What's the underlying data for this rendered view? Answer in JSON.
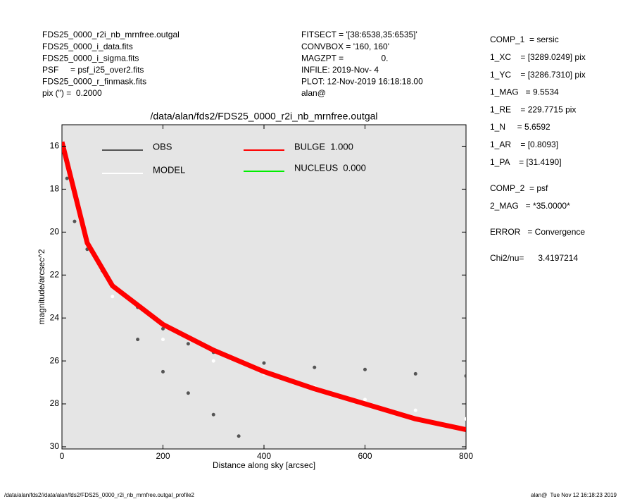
{
  "header": {
    "left": [
      "FDS25_0000_r2i_nb_mrnfree.outgal",
      "FDS25_0000_i_data.fits",
      "FDS25_0000_i_sigma.fits",
      "PSF     = psf_i25_over2.fits",
      "FDS25_0000_r_finmask.fits",
      "pix (\") =  0.2000"
    ],
    "middle": [
      "FITSECT = '[38:6538,35:6535]'",
      "CONVBOX = '160, 160'",
      "MAGZPT =                0.",
      "INFILE: 2019-Nov- 4",
      "PLOT: 12-Nov-2019 16:18:18.00",
      "alan@"
    ],
    "right": [
      [
        "COMP_1  = sersic",
        "1_XC    = [3289.0249] pix",
        "1_YC    = [3286.7310] pix",
        "1_MAG   = 9.5534",
        "1_RE    = 229.7715 pix",
        "1_N     = 5.6592",
        "1_AR    = [0.8093]",
        "1_PA    = [31.4190]"
      ],
      [
        "COMP_2  = psf",
        "2_MAG   = *35.0000*"
      ],
      [
        "ERROR   = Convergence"
      ],
      [
        "Chi2/nu=      3.4197214"
      ]
    ]
  },
  "chart_data": {
    "type": "scatter",
    "title": "/data/alan/fds2/FDS25_0000_r2i_nb_mrnfree.outgal",
    "x_label": "Distance along sky [arcsec]",
    "y_label": "magnitude/arcsec^2",
    "xlim": [
      0,
      800
    ],
    "ylim": [
      30.1,
      15.0
    ],
    "xticks": [
      0,
      200,
      400,
      600,
      800
    ],
    "yticks": [
      16,
      18,
      20,
      22,
      24,
      26,
      28,
      30
    ],
    "background": "#e5e5e5",
    "series": [
      {
        "name": "OBS",
        "color": "#555555",
        "style": "points",
        "x": [
          0,
          10,
          25,
          50,
          80,
          100,
          150,
          200,
          250,
          300,
          400,
          500,
          600,
          700,
          800,
          150,
          200,
          250,
          300,
          350
        ],
        "values": [
          16,
          17.5,
          19.5,
          20.8,
          21.8,
          22.5,
          23.5,
          24.5,
          25.2,
          25.6,
          26.1,
          26.3,
          26.4,
          26.6,
          26.7,
          25,
          26.5,
          27.5,
          28.5,
          29.5
        ]
      },
      {
        "name": "MODEL",
        "color": "#ffffff",
        "style": "points",
        "x": [
          100,
          200,
          300,
          400,
          500,
          600,
          700,
          800
        ],
        "values": [
          23,
          25,
          26,
          26.6,
          27.2,
          27.8,
          28.3,
          28.7
        ]
      },
      {
        "name": "BULGE  1.000",
        "color": "#ff0000",
        "style": "line",
        "x": [
          0,
          50,
          100,
          200,
          300,
          400,
          500,
          600,
          700,
          800
        ],
        "values": [
          15.8,
          20.5,
          22.5,
          24.3,
          25.5,
          26.5,
          27.3,
          28,
          28.7,
          29.2
        ]
      },
      {
        "name": "NUCLEUS  0.000",
        "color": "#00ee00",
        "style": "points",
        "x": [],
        "values": []
      }
    ],
    "footer_left": "/data/alan/fds2//data/alan/fds2/FDS25_0000_r2i_nb_mrnfree.outgal_profile2",
    "footer_right": "alan@  Tue Nov 12 16:18:23 2019"
  }
}
